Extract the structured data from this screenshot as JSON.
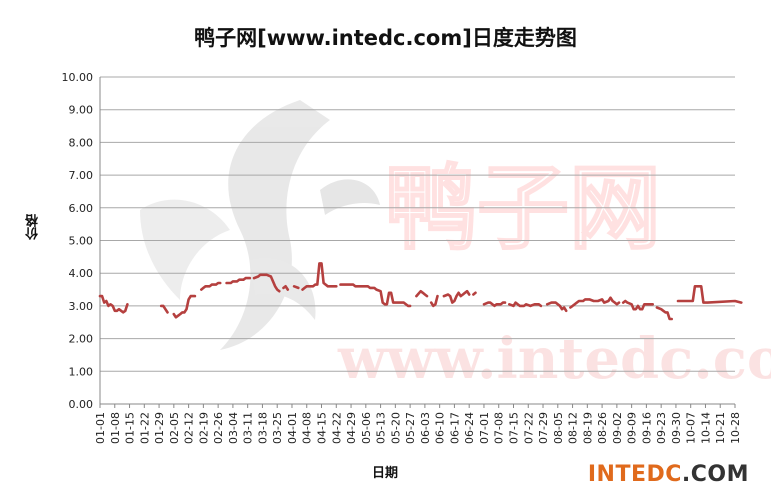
{
  "chart_data": {
    "type": "line",
    "title": "鸭子网[www.intedc.com]日度走势图",
    "ylabel": "价格",
    "xlabel": "日期",
    "ylim": [
      0,
      10
    ],
    "ytick_step": 1,
    "yticks": [
      "0.00",
      "1.00",
      "2.00",
      "3.00",
      "4.00",
      "5.00",
      "6.00",
      "7.00",
      "8.00",
      "9.00",
      "10.00"
    ],
    "x_tick_labels": [
      "01-01",
      "01-08",
      "01-15",
      "01-22",
      "01-29",
      "02-05",
      "02-12",
      "02-19",
      "02-26",
      "03-04",
      "03-11",
      "03-18",
      "03-25",
      "04-01",
      "04-08",
      "04-15",
      "04-22",
      "04-29",
      "05-06",
      "05-13",
      "05-20",
      "05-27",
      "06-03",
      "06-10",
      "06-17",
      "06-24",
      "07-01",
      "07-08",
      "07-15",
      "07-22",
      "07-29",
      "08-05",
      "08-12",
      "08-19",
      "08-26",
      "09-02",
      "09-09",
      "09-16",
      "09-23",
      "09-30",
      "10-07",
      "10-14",
      "10-21",
      "10-28"
    ],
    "grid": true,
    "color": "#b5403f",
    "series": [
      {
        "segments": [
          [
            [
              0,
              3.3
            ],
            [
              1,
              3.3
            ],
            [
              2,
              3.1
            ],
            [
              3,
              3.15
            ],
            [
              4,
              3.0
            ],
            [
              5,
              3.05
            ],
            [
              6,
              3.0
            ],
            [
              7,
              2.85
            ],
            [
              8,
              2.85
            ],
            [
              9,
              2.9
            ],
            [
              10,
              2.85
            ],
            [
              11,
              2.8
            ],
            [
              12,
              2.85
            ],
            [
              13,
              3.05
            ]
          ],
          [
            [
              29,
              3.0
            ],
            [
              30,
              3.0
            ],
            [
              31,
              2.9
            ],
            [
              32,
              2.8
            ]
          ],
          [
            [
              35,
              2.75
            ],
            [
              36,
              2.65
            ],
            [
              37,
              2.7
            ],
            [
              38,
              2.75
            ],
            [
              39,
              2.8
            ],
            [
              40,
              2.8
            ],
            [
              41,
              2.9
            ],
            [
              42,
              3.2
            ],
            [
              43,
              3.3
            ],
            [
              44,
              3.3
            ],
            [
              45,
              3.3
            ]
          ],
          [
            [
              48,
              3.5
            ],
            [
              49,
              3.55
            ],
            [
              50,
              3.6
            ],
            [
              52,
              3.6
            ],
            [
              53,
              3.65
            ],
            [
              55,
              3.65
            ],
            [
              56,
              3.7
            ],
            [
              57,
              3.7
            ]
          ],
          [
            [
              60,
              3.7
            ],
            [
              62,
              3.7
            ],
            [
              63,
              3.75
            ],
            [
              65,
              3.75
            ],
            [
              66,
              3.8
            ],
            [
              68,
              3.8
            ],
            [
              69,
              3.85
            ],
            [
              70,
              3.85
            ],
            [
              71,
              3.85
            ]
          ],
          [
            [
              73,
              3.85
            ],
            [
              75,
              3.9
            ],
            [
              76,
              3.95
            ],
            [
              79,
              3.95
            ],
            [
              81,
              3.9
            ],
            [
              83,
              3.6
            ],
            [
              84,
              3.5
            ],
            [
              85,
              3.45
            ]
          ],
          [
            [
              87,
              3.55
            ],
            [
              88,
              3.6
            ],
            [
              89,
              3.5
            ]
          ],
          [
            [
              92,
              3.6
            ],
            [
              94,
              3.55
            ]
          ],
          [
            [
              96,
              3.5
            ],
            [
              97,
              3.55
            ],
            [
              98,
              3.6
            ],
            [
              99,
              3.6
            ],
            [
              100,
              3.6
            ],
            [
              101,
              3.6
            ],
            [
              102,
              3.65
            ],
            [
              103,
              3.65
            ],
            [
              104,
              4.3
            ],
            [
              105,
              4.3
            ],
            [
              106,
              3.7
            ],
            [
              108,
              3.6
            ],
            [
              110,
              3.6
            ],
            [
              112,
              3.6
            ]
          ],
          [
            [
              114,
              3.65
            ],
            [
              120,
              3.65
            ],
            [
              121,
              3.6
            ],
            [
              127,
              3.6
            ],
            [
              128,
              3.55
            ],
            [
              130,
              3.55
            ],
            [
              131,
              3.5
            ],
            [
              133,
              3.45
            ],
            [
              134,
              3.1
            ],
            [
              135,
              3.05
            ],
            [
              136,
              3.05
            ],
            [
              137,
              3.4
            ],
            [
              138,
              3.4
            ],
            [
              139,
              3.1
            ],
            [
              140,
              3.1
            ],
            [
              144,
              3.1
            ],
            [
              146,
              3.0
            ],
            [
              147,
              3.0
            ]
          ],
          [
            [
              150,
              3.3
            ],
            [
              152,
              3.45
            ],
            [
              153,
              3.4
            ],
            [
              154,
              3.35
            ],
            [
              155,
              3.3
            ]
          ],
          [
            [
              157,
              3.1
            ],
            [
              158,
              3.0
            ],
            [
              159,
              3.05
            ],
            [
              160,
              3.3
            ]
          ],
          [
            [
              163,
              3.3
            ],
            [
              165,
              3.35
            ],
            [
              166,
              3.3
            ],
            [
              167,
              3.1
            ],
            [
              168,
              3.15
            ],
            [
              169,
              3.3
            ],
            [
              170,
              3.4
            ],
            [
              171,
              3.3
            ],
            [
              172,
              3.35
            ],
            [
              173,
              3.4
            ],
            [
              174,
              3.45
            ],
            [
              175,
              3.35
            ]
          ],
          [
            [
              177,
              3.35
            ],
            [
              178,
              3.4
            ]
          ],
          [
            [
              182,
              3.05
            ],
            [
              184,
              3.1
            ],
            [
              185,
              3.1
            ],
            [
              186,
              3.05
            ],
            [
              187,
              3.0
            ],
            [
              188,
              3.05
            ],
            [
              189,
              3.05
            ],
            [
              190,
              3.05
            ],
            [
              191,
              3.1
            ],
            [
              192,
              3.1
            ]
          ],
          [
            [
              194,
              3.05
            ],
            [
              196,
              3.0
            ],
            [
              197,
              3.1
            ],
            [
              198,
              3.05
            ],
            [
              199,
              3.0
            ],
            [
              201,
              3.0
            ],
            [
              202,
              3.05
            ],
            [
              204,
              3.0
            ],
            [
              206,
              3.05
            ],
            [
              208,
              3.05
            ],
            [
              209,
              3.0
            ]
          ],
          [
            [
              212,
              3.05
            ],
            [
              214,
              3.1
            ],
            [
              216,
              3.1
            ],
            [
              217,
              3.05
            ],
            [
              218,
              3.0
            ],
            [
              219,
              2.9
            ],
            [
              220,
              2.95
            ],
            [
              221,
              2.85
            ]
          ],
          [
            [
              223,
              2.95
            ],
            [
              224,
              3.0
            ],
            [
              225,
              3.05
            ],
            [
              226,
              3.1
            ],
            [
              227,
              3.15
            ],
            [
              229,
              3.15
            ],
            [
              230,
              3.2
            ],
            [
              232,
              3.2
            ],
            [
              234,
              3.15
            ],
            [
              236,
              3.15
            ],
            [
              238,
              3.2
            ],
            [
              239,
              3.1
            ],
            [
              241,
              3.15
            ],
            [
              242,
              3.25
            ],
            [
              243,
              3.15
            ],
            [
              244,
              3.1
            ],
            [
              245,
              3.05
            ],
            [
              246,
              3.1
            ]
          ],
          [
            [
              248,
              3.1
            ],
            [
              249,
              3.15
            ],
            [
              250,
              3.1
            ],
            [
              252,
              3.05
            ],
            [
              253,
              2.9
            ],
            [
              254,
              2.9
            ],
            [
              255,
              3.0
            ],
            [
              256,
              2.9
            ],
            [
              257,
              2.9
            ],
            [
              258,
              3.05
            ],
            [
              262,
              3.05
            ]
          ],
          [
            [
              264,
              2.95
            ],
            [
              266,
              2.9
            ],
            [
              267,
              2.85
            ],
            [
              268,
              2.8
            ],
            [
              269,
              2.8
            ],
            [
              270,
              2.6
            ],
            [
              271,
              2.6
            ]
          ],
          [
            [
              274,
              3.15
            ],
            [
              276,
              3.15
            ],
            [
              281,
              3.15
            ],
            [
              282,
              3.6
            ],
            [
              283,
              3.6
            ],
            [
              285,
              3.6
            ],
            [
              286,
              3.1
            ],
            [
              288,
              3.1
            ],
            [
              301,
              3.15
            ],
            [
              304,
              3.1
            ]
          ]
        ]
      }
    ]
  },
  "watermark": {
    "big_chars": "鸭子网",
    "url": "www.intedc.com"
  },
  "brand": {
    "part1": "INTEDC",
    "part2": ".COM"
  }
}
